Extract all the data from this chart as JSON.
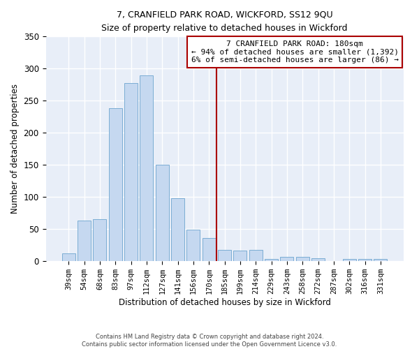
{
  "title": "7, CRANFIELD PARK ROAD, WICKFORD, SS12 9QU",
  "subtitle": "Size of property relative to detached houses in Wickford",
  "xlabel": "Distribution of detached houses by size in Wickford",
  "ylabel": "Number of detached properties",
  "bar_color": "#c5d8f0",
  "bar_edge_color": "#7badd4",
  "background_color": "#e8eef8",
  "grid_color": "#ffffff",
  "categories": [
    "39sqm",
    "54sqm",
    "68sqm",
    "83sqm",
    "97sqm",
    "112sqm",
    "127sqm",
    "141sqm",
    "156sqm",
    "170sqm",
    "185sqm",
    "199sqm",
    "214sqm",
    "229sqm",
    "243sqm",
    "258sqm",
    "272sqm",
    "287sqm",
    "302sqm",
    "316sqm",
    "331sqm"
  ],
  "values": [
    12,
    63,
    65,
    238,
    277,
    290,
    150,
    98,
    49,
    36,
    18,
    17,
    18,
    4,
    7,
    7,
    5,
    0,
    4,
    4,
    3
  ],
  "vline_color": "#aa0000",
  "annotation_line1": "7 CRANFIELD PARK ROAD: 180sqm",
  "annotation_line2": "← 94% of detached houses are smaller (1,392)",
  "annotation_line3": "6% of semi-detached houses are larger (86) →",
  "footer_line1": "Contains HM Land Registry data © Crown copyright and database right 2024.",
  "footer_line2": "Contains public sector information licensed under the Open Government Licence v3.0.",
  "ylim": [
    0,
    350
  ],
  "yticks": [
    0,
    50,
    100,
    150,
    200,
    250,
    300,
    350
  ],
  "vline_bin": 10
}
